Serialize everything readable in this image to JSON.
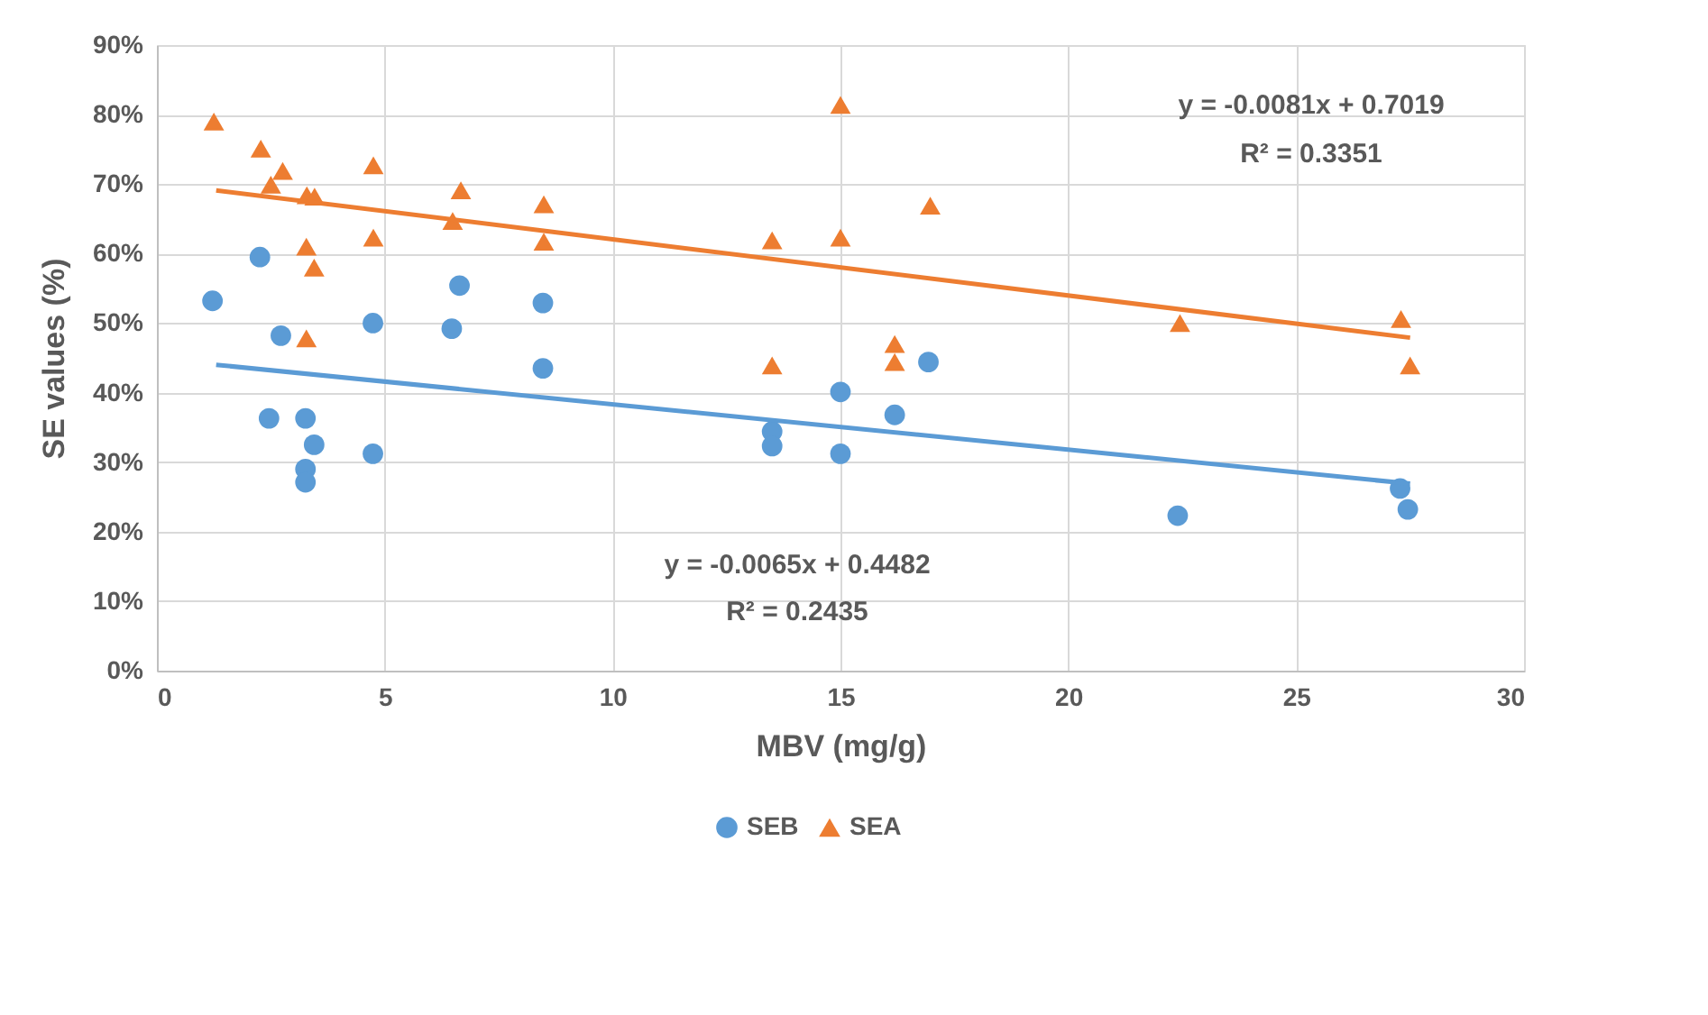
{
  "chart_data": {
    "type": "scatter",
    "xlabel": "MBV (mg/g)",
    "ylabel": "SE values (%)",
    "xlim": [
      0,
      30
    ],
    "xticks": [
      0,
      5,
      10,
      15,
      20,
      25,
      30
    ],
    "ylim": [
      0,
      90
    ],
    "yticks": [
      {
        "value": 0,
        "label": "0%"
      },
      {
        "value": 10,
        "label": "10%"
      },
      {
        "value": 20,
        "label": "20%"
      },
      {
        "value": 30,
        "label": "30%"
      },
      {
        "value": 40,
        "label": "40%"
      },
      {
        "value": 50,
        "label": "50%"
      },
      {
        "value": 60,
        "label": "60%"
      },
      {
        "value": 70,
        "label": "70%"
      },
      {
        "value": 80,
        "label": "80%"
      },
      {
        "value": 90,
        "label": "90%"
      }
    ],
    "grid": true,
    "legend": "bottom",
    "series": [
      {
        "name": "SEB",
        "color": "#5b9bd5",
        "marker": "circle",
        "x": [
          1.22,
          2.26,
          2.72,
          2.46,
          3.26,
          3.45,
          3.26,
          3.26,
          4.74,
          4.74,
          6.64,
          6.47,
          8.47,
          8.47,
          16.93,
          15,
          16.19,
          13.5,
          13.5,
          15,
          22.4,
          27.28,
          27.45
        ],
        "values": [
          53.2,
          59.5,
          48.2,
          36.3,
          36.3,
          32.5,
          29.0,
          27.1,
          50.0,
          31.2,
          55.4,
          49.2,
          52.9,
          43.5,
          44.4,
          40.1,
          36.8,
          34.4,
          32.3,
          31.2,
          22.3,
          26.2,
          23.2
        ]
      },
      {
        "name": "SEA",
        "color": "#ed7d31",
        "marker": "triangle",
        "x": [
          1.25,
          2.28,
          2.76,
          2.5,
          3.29,
          3.46,
          4.75,
          3.28,
          3.45,
          3.28,
          4.75,
          6.67,
          6.49,
          8.49,
          8.49,
          15,
          16.97,
          13.5,
          15,
          13.5,
          16.19,
          16.19,
          22.45,
          27.3,
          27.5
        ],
        "values": [
          79.0,
          75.1,
          71.9,
          69.9,
          68.4,
          68.2,
          72.7,
          61.0,
          58.0,
          47.8,
          62.3,
          69.1,
          64.7,
          67.1,
          61.7,
          81.4,
          66.9,
          61.9,
          62.3,
          43.9,
          47.0,
          44.4,
          50.0,
          50.6,
          43.9
        ]
      },
      {
        "type": "line",
        "color": "#5b9bd5",
        "marker": "none",
        "x": [
          1.3,
          27.5
        ],
        "values": [
          44.0,
          26.9
        ]
      },
      {
        "type": "line",
        "color": "#ed7d31",
        "marker": "none",
        "x": [
          1.3,
          27.5
        ],
        "values": [
          69.1,
          47.9
        ]
      }
    ],
    "annotations": [
      "y = -0.0081x + 0.7019",
      "R² = 0.3351",
      "y = -0.0065x + 0.4482",
      "R² = 0.2435"
    ]
  }
}
